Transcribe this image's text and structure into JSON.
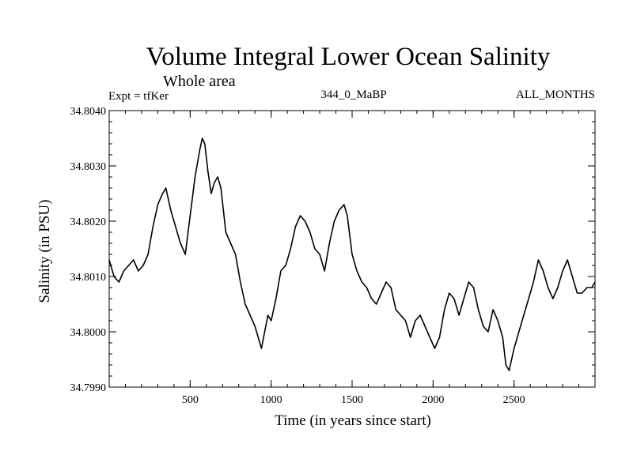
{
  "chart_data": {
    "type": "line",
    "title": "Volume Integral Lower Ocean Salinity",
    "subtitle": "Whole area",
    "annotations": {
      "experiment": "Expt = tfKer",
      "period": "344_0_MaBP",
      "months": "ALL_MONTHS"
    },
    "xlabel": "Time (in years since start)",
    "ylabel": "Salinity (in PSU)",
    "xlim": [
      0,
      3000
    ],
    "ylim": [
      34.799,
      34.804
    ],
    "xticks": [
      500,
      1000,
      1500,
      2000,
      2500
    ],
    "xtick_labels": [
      "500",
      "1000",
      "1500",
      "2000",
      "2500"
    ],
    "yticks": [
      34.799,
      34.8,
      34.801,
      34.802,
      34.803,
      34.804
    ],
    "ytick_labels": [
      "34.7990",
      "34.8000",
      "34.8010",
      "34.8020",
      "34.8030",
      "34.8040"
    ],
    "grid": false,
    "series": [
      {
        "color": "#000000",
        "x": [
          0,
          30,
          60,
          90,
          120,
          150,
          180,
          210,
          240,
          270,
          300,
          330,
          350,
          380,
          410,
          440,
          470,
          500,
          530,
          560,
          575,
          590,
          610,
          630,
          650,
          670,
          690,
          720,
          750,
          780,
          810,
          840,
          870,
          900,
          920,
          940,
          960,
          980,
          1000,
          1030,
          1060,
          1090,
          1120,
          1150,
          1180,
          1210,
          1240,
          1270,
          1300,
          1330,
          1360,
          1390,
          1420,
          1450,
          1470,
          1500,
          1530,
          1560,
          1590,
          1620,
          1650,
          1680,
          1710,
          1740,
          1770,
          1800,
          1830,
          1860,
          1890,
          1920,
          1950,
          1980,
          2010,
          2040,
          2070,
          2100,
          2130,
          2160,
          2190,
          2220,
          2250,
          2280,
          2310,
          2340,
          2370,
          2400,
          2430,
          2450,
          2470,
          2500,
          2530,
          2560,
          2590,
          2620,
          2650,
          2680,
          2710,
          2740,
          2770,
          2800,
          2830,
          2860,
          2890,
          2920,
          2950,
          2980,
          3000
        ],
        "y": [
          34.8013,
          34.801,
          34.8009,
          34.8011,
          34.8012,
          34.8013,
          34.8011,
          34.8012,
          34.8014,
          34.8019,
          34.8023,
          34.8025,
          34.8026,
          34.8022,
          34.8019,
          34.8016,
          34.8014,
          34.8021,
          34.8028,
          34.8033,
          34.8035,
          34.8034,
          34.8029,
          34.8025,
          34.8027,
          34.8028,
          34.8026,
          34.8018,
          34.8016,
          34.8014,
          34.8009,
          34.8005,
          34.8003,
          34.8001,
          34.7999,
          34.7997,
          34.8,
          34.8003,
          34.8002,
          34.8006,
          34.8011,
          34.8012,
          34.8015,
          34.8019,
          34.8021,
          34.802,
          34.8018,
          34.8015,
          34.8014,
          34.8011,
          34.8016,
          34.802,
          34.8022,
          34.8023,
          34.8021,
          34.8014,
          34.8011,
          34.8009,
          34.8008,
          34.8006,
          34.8005,
          34.8007,
          34.8009,
          34.8008,
          34.8004,
          34.8003,
          34.8002,
          34.7999,
          34.8002,
          34.8003,
          34.8001,
          34.7999,
          34.7997,
          34.7999,
          34.8004,
          34.8007,
          34.8006,
          34.8003,
          34.8006,
          34.8009,
          34.8008,
          34.8004,
          34.8001,
          34.8,
          34.8004,
          34.8002,
          34.7999,
          34.7994,
          34.7993,
          34.7997,
          34.8,
          34.8003,
          34.8006,
          34.8009,
          34.8013,
          34.8011,
          34.8008,
          34.8006,
          34.8008,
          34.8011,
          34.8013,
          34.801,
          34.8007,
          34.8007,
          34.8008,
          34.8008,
          34.8009
        ]
      }
    ]
  }
}
